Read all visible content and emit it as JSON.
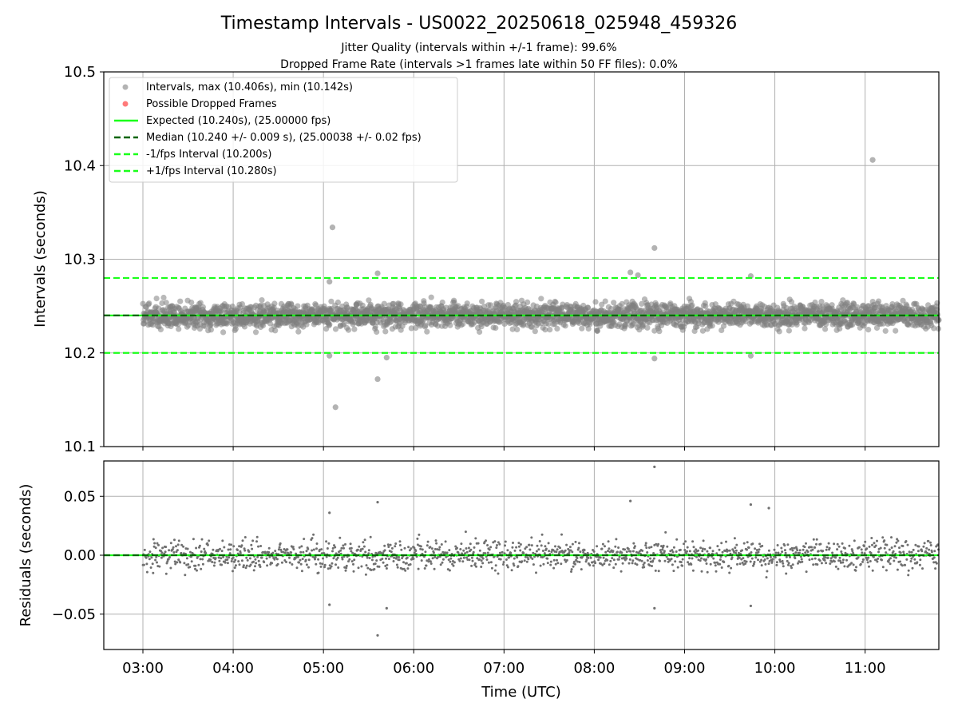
{
  "chart_data": [
    {
      "type": "scatter",
      "title": "Timestamp Intervals - US0022_20250618_025948_459326",
      "subtitle_lines": [
        "Jitter Quality (intervals within +/-1 frame): 99.6%",
        "Dropped Frame Rate (intervals >1 frames late within 50 FF files): 0.0%"
      ],
      "xlabel": "",
      "ylabel": "Intervals (seconds)",
      "x_unit": "time of day UTC (hours)",
      "xlim": [
        "02:34",
        "11:49"
      ],
      "ylim": [
        10.1,
        10.5
      ],
      "y_ticks": [
        "10.1",
        "10.2",
        "10.3",
        "10.4",
        "10.5"
      ],
      "grid": true,
      "legend_position": "top-left",
      "series": [
        {
          "name": "Intervals, max (10.406s), min (10.142s)",
          "marker": "circle",
          "color": "#808080",
          "points": [
            {
              "x": "05:06",
              "y": 10.334
            },
            {
              "x": "05:08",
              "y": 10.142
            },
            {
              "x": "05:04",
              "y": 10.276
            },
            {
              "x": "05:04",
              "y": 10.197
            },
            {
              "x": "05:36",
              "y": 10.285
            },
            {
              "x": "05:36",
              "y": 10.172
            },
            {
              "x": "05:42",
              "y": 10.195
            },
            {
              "x": "08:24",
              "y": 10.286
            },
            {
              "x": "08:29",
              "y": 10.283
            },
            {
              "x": "08:40",
              "y": 10.312
            },
            {
              "x": "08:40",
              "y": 10.194
            },
            {
              "x": "09:44",
              "y": 10.282
            },
            {
              "x": "09:44",
              "y": 10.197
            },
            {
              "x": "11:05",
              "y": 10.406
            }
          ]
        },
        {
          "name": "Possible Dropped Frames",
          "marker": "circle",
          "color": "#ff6b6b",
          "points": []
        },
        {
          "name": "Expected (10.240s), (25.00000 fps)",
          "line": "solid",
          "color": "#1aff1a",
          "y": 10.24
        },
        {
          "name": "Median (10.240 +/- 0.009 s), (25.00038 +/- 0.02 fps)",
          "line": "dashed",
          "color": "#006400",
          "y": 10.24
        },
        {
          "name": "-1/fps Interval (10.200s)",
          "line": "dashed",
          "color": "#1aff1a",
          "y": 10.2
        },
        {
          "name": "+1/fps Interval (10.280s)",
          "line": "dashed",
          "color": "#1aff1a",
          "y": 10.28
        }
      ],
      "bulk_cloud": {
        "x_range": [
          "03:00",
          "11:49"
        ],
        "y_center": 10.24,
        "y_spread": 0.009
      }
    },
    {
      "type": "scatter",
      "title": "",
      "xlabel": "Time (UTC)",
      "ylabel": "Residuals (seconds)",
      "x_unit": "time of day UTC (hours)",
      "xlim": [
        "02:34",
        "11:49"
      ],
      "ylim": [
        -0.08,
        0.08
      ],
      "y_ticks": [
        "−0.05",
        "0.00",
        "0.05"
      ],
      "x_ticks": [
        "03:00",
        "04:00",
        "05:00",
        "06:00",
        "07:00",
        "08:00",
        "09:00",
        "10:00",
        "11:00"
      ],
      "grid": true,
      "series": [
        {
          "name": "",
          "marker": "dot",
          "color": "#707070",
          "points": [
            {
              "x": "08:40",
              "y": 0.075
            },
            {
              "x": "05:36",
              "y": 0.045
            },
            {
              "x": "05:36",
              "y": -0.068
            },
            {
              "x": "05:42",
              "y": -0.045
            },
            {
              "x": "05:04",
              "y": 0.036
            },
            {
              "x": "05:04",
              "y": -0.042
            },
            {
              "x": "08:24",
              "y": 0.046
            },
            {
              "x": "08:40",
              "y": -0.045
            },
            {
              "x": "09:44",
              "y": 0.043
            },
            {
              "x": "09:44",
              "y": -0.043
            },
            {
              "x": "09:56",
              "y": 0.04
            }
          ]
        },
        {
          "name": "",
          "line": "solid",
          "color": "#1aff1a",
          "y": 0.0
        },
        {
          "name": "",
          "line": "dashed",
          "color": "#006400",
          "y": 0.0
        }
      ],
      "bulk_cloud": {
        "x_range": [
          "03:00",
          "11:49"
        ],
        "y_center": 0.0,
        "y_spread": 0.009
      }
    }
  ]
}
